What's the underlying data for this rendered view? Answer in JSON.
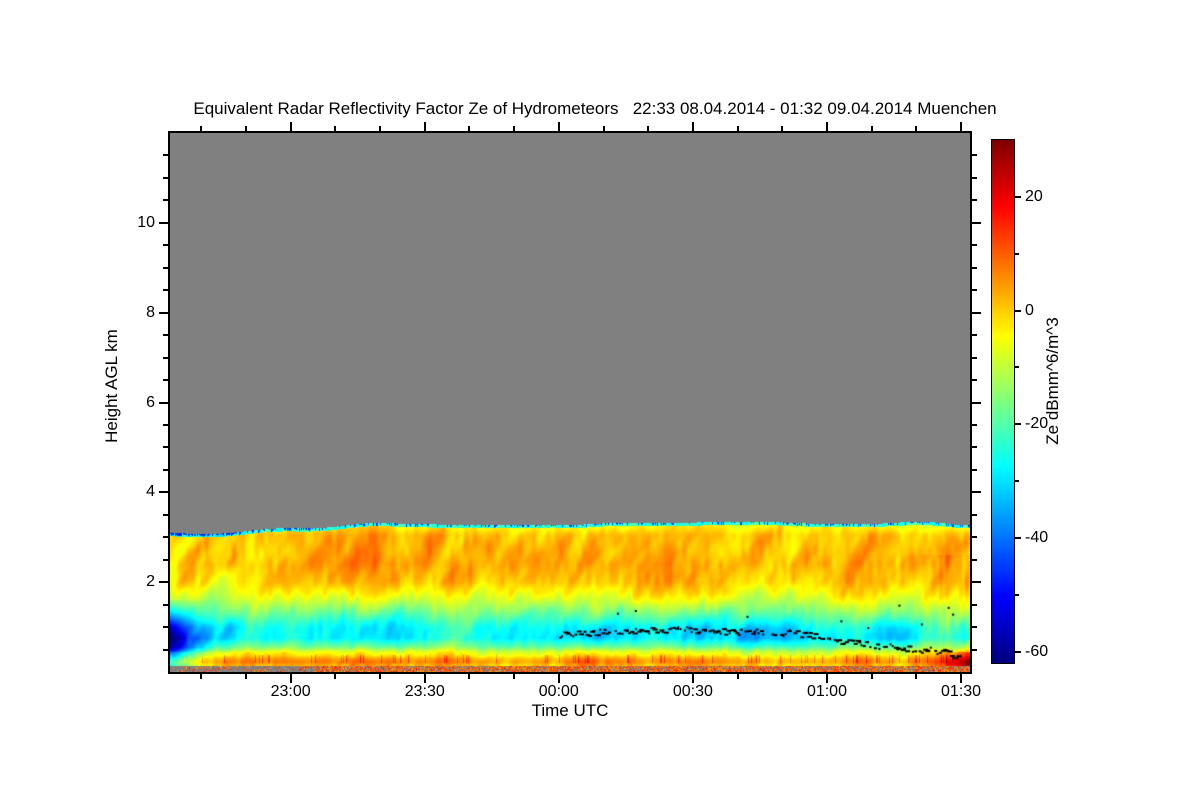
{
  "chart_data": {
    "type": "heatmap",
    "title": "Equivalent Radar Reflectivity Factor Ze of Hydrometeors   22:33 08.04.2014 - 01:32 09.04.2014 Muenchen",
    "instrument_quantity": "Equivalent Radar Reflectivity Factor Ze of Hydrometeors",
    "location": "Muenchen",
    "time_start": "22:33 08.04.2014",
    "time_end": "01:32 09.04.2014",
    "xlabel": "Time UTC",
    "ylabel": "Height AGL km",
    "zlabel": "Ze dBmm^6/m^3",
    "duration_min": 179,
    "x_ticks": [
      {
        "label": "23:00",
        "min": 27
      },
      {
        "label": "23:30",
        "min": 57
      },
      {
        "label": "00:00",
        "min": 87
      },
      {
        "label": "00:30",
        "min": 117
      },
      {
        "label": "01:00",
        "min": 147
      },
      {
        "label": "01:30",
        "min": 177
      }
    ],
    "x_minor_step_min": 10,
    "y_range_km": [
      0,
      12
    ],
    "y_ticks": [
      2,
      4,
      6,
      8,
      10
    ],
    "y_minor_step_km": 0.5,
    "colorbar": {
      "range_dbz": [
        -62,
        30
      ],
      "ticks": [
        20,
        0,
        -20,
        -40,
        -60
      ],
      "minor_ticks": [
        10,
        -10,
        -30,
        -50
      ],
      "colormap": "jet"
    },
    "no_data_color": "#808080",
    "echo_top_km": {
      "left": 3.07,
      "main": 3.3
    },
    "profile_dbz": [
      [
        3.35,
        -6
      ],
      [
        3.05,
        1
      ],
      [
        2.4,
        3
      ],
      [
        2.0,
        0
      ],
      [
        1.7,
        -6
      ],
      [
        1.35,
        -14
      ],
      [
        1.0,
        -22
      ],
      [
        0.75,
        -24
      ],
      [
        0.55,
        -15
      ],
      [
        0.45,
        -6
      ],
      [
        0.36,
        -2
      ],
      [
        0.3,
        3
      ],
      [
        0.22,
        6
      ],
      [
        0.15,
        2
      ],
      [
        0.05,
        0
      ]
    ],
    "features": {
      "cloud_top_fringe_dbz": -28,
      "cloud_top_speck_dbz": -52,
      "left_blue_patch": {
        "t_min": [
          0,
          10
        ],
        "h_km": [
          0.12,
          1.6
        ],
        "dbz_min": -55
      },
      "cyan_pockets_t_h_st_sh_dz": [
        [
          110,
          1.0,
          22,
          0.28,
          -8
        ],
        [
          97,
          0.78,
          8,
          0.2,
          -6
        ],
        [
          135,
          0.75,
          10,
          0.2,
          -5
        ],
        [
          160,
          0.8,
          7,
          0.3,
          -7
        ],
        [
          40,
          1.1,
          14,
          0.3,
          -5
        ]
      ],
      "right_red_streaks": {
        "t_min": [
          165,
          179
        ],
        "h_km": [
          0,
          0.8
        ],
        "dbz_max": 27
      },
      "surface_speckle_band_km": [
        0.2,
        0.37
      ],
      "melting_layer_dots": {
        "color": "#000000",
        "path_t_h": [
          [
            87,
            0.85
          ],
          [
            95,
            0.9
          ],
          [
            105,
            0.93
          ],
          [
            115,
            0.96
          ],
          [
            124,
            0.92
          ],
          [
            133,
            0.9
          ],
          [
            140,
            0.88
          ],
          [
            146,
            0.78
          ],
          [
            152,
            0.68
          ],
          [
            160,
            0.58
          ],
          [
            168,
            0.52
          ],
          [
            173,
            0.46
          ],
          [
            176,
            0.33
          ]
        ],
        "outliers_t_h": [
          [
            100,
            1.32
          ],
          [
            104,
            1.38
          ],
          [
            129,
            1.25
          ],
          [
            150,
            1.15
          ],
          [
            156,
            1.0
          ],
          [
            163,
            1.5
          ],
          [
            168,
            1.08
          ],
          [
            174,
            1.45
          ],
          [
            175,
            1.3
          ]
        ]
      }
    }
  }
}
